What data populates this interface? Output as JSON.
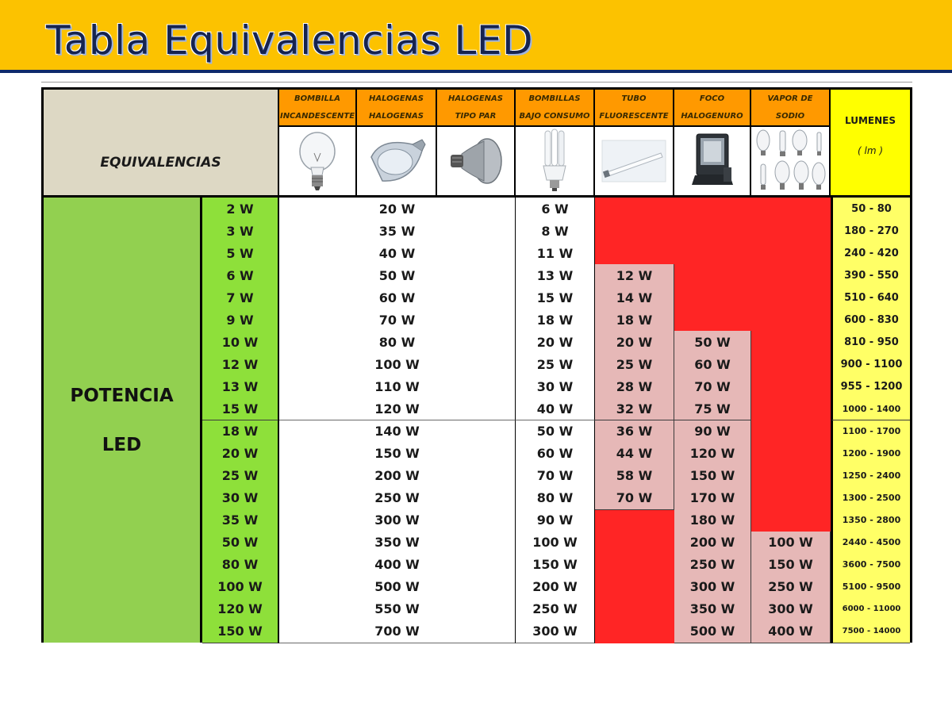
{
  "header": {
    "title": "Tabla Equivalencias LED"
  },
  "table": {
    "corner_label": "EQUIVALENCIAS",
    "row_group_label": [
      "POTENCIA",
      "LED"
    ],
    "columns": [
      {
        "key": "incandescente",
        "label": [
          "BOMBILLA",
          "INCANDESCENTE"
        ],
        "icon": "incandescent-bulb-icon"
      },
      {
        "key": "halogenas",
        "label": [
          "HALOGENAS",
          "HALOGENAS"
        ],
        "icon": "halogen-reflector-icon"
      },
      {
        "key": "par",
        "label": [
          "HALOGENAS",
          "TIPO PAR"
        ],
        "icon": "par-lamp-icon"
      },
      {
        "key": "bajo_consumo",
        "label": [
          "BOMBILLAS",
          "BAJO CONSUMO"
        ],
        "icon": "cfl-bulb-icon"
      },
      {
        "key": "tubo",
        "label": [
          "TUBO",
          "FLUORESCENTE"
        ],
        "icon": "fluorescent-tube-icon"
      },
      {
        "key": "foco",
        "label": [
          "FOCO",
          "HALOGENURO"
        ],
        "icon": "floodlight-icon"
      },
      {
        "key": "vapor",
        "label": [
          "VAPOR DE",
          "SODIO"
        ],
        "icon": "sodium-vapor-lamps-icon"
      }
    ],
    "lumens_header": {
      "label": "LUMENES",
      "unit": "( lm )"
    },
    "rows": [
      {
        "led": "2 W",
        "halogen": "20 W",
        "bajo": "6 W",
        "tubo": null,
        "foco": null,
        "vapor": null,
        "lumens": "50 - 80"
      },
      {
        "led": "3 W",
        "halogen": "35 W",
        "bajo": "8 W",
        "tubo": null,
        "foco": null,
        "vapor": null,
        "lumens": "180 - 270"
      },
      {
        "led": "5 W",
        "halogen": "40 W",
        "bajo": "11 W",
        "tubo": null,
        "foco": null,
        "vapor": null,
        "lumens": "240 - 420"
      },
      {
        "led": "6 W",
        "halogen": "50 W",
        "bajo": "13 W",
        "tubo": "12 W",
        "foco": null,
        "vapor": null,
        "lumens": "390 - 550"
      },
      {
        "led": "7 W",
        "halogen": "60 W",
        "bajo": "15 W",
        "tubo": "14 W",
        "foco": null,
        "vapor": null,
        "lumens": "510 - 640"
      },
      {
        "led": "9 W",
        "halogen": "70 W",
        "bajo": "18 W",
        "tubo": "18 W",
        "foco": null,
        "vapor": null,
        "lumens": "600 - 830"
      },
      {
        "led": "10 W",
        "halogen": "80 W",
        "bajo": "20 W",
        "tubo": "20 W",
        "foco": "50 W",
        "vapor": null,
        "lumens": "810 - 950"
      },
      {
        "led": "12 W",
        "halogen": "100 W",
        "bajo": "25 W",
        "tubo": "25 W",
        "foco": "60 W",
        "vapor": null,
        "lumens": "900 - 1100"
      },
      {
        "led": "13 W",
        "halogen": "110 W",
        "bajo": "30 W",
        "tubo": "28 W",
        "foco": "70 W",
        "vapor": null,
        "lumens": "955 - 1200"
      },
      {
        "led": "15 W",
        "halogen": "120 W",
        "bajo": "40 W",
        "tubo": "32 W",
        "foco": "75 W",
        "vapor": null,
        "lumens": "1000 - 1400"
      },
      {
        "led": "18 W",
        "halogen": "140 W",
        "bajo": "50 W",
        "tubo": "36 W",
        "foco": "90 W",
        "vapor": null,
        "lumens": "1100 - 1700"
      },
      {
        "led": "20 W",
        "halogen": "150 W",
        "bajo": "60 W",
        "tubo": "44 W",
        "foco": "120 W",
        "vapor": null,
        "lumens": "1200 - 1900"
      },
      {
        "led": "25 W",
        "halogen": "200 W",
        "bajo": "70 W",
        "tubo": "58 W",
        "foco": "150 W",
        "vapor": null,
        "lumens": "1250 - 2400"
      },
      {
        "led": "30 W",
        "halogen": "250 W",
        "bajo": "80 W",
        "tubo": "70 W",
        "foco": "170 W",
        "vapor": null,
        "lumens": "1300 - 2500"
      },
      {
        "led": "35 W",
        "halogen": "300 W",
        "bajo": "90 W",
        "tubo": null,
        "foco": "180 W",
        "vapor": null,
        "lumens": "1350 - 2800"
      },
      {
        "led": "50 W",
        "halogen": "350 W",
        "bajo": "100 W",
        "tubo": null,
        "foco": "200 W",
        "vapor": "100 W",
        "lumens": "2440 - 4500"
      },
      {
        "led": "80 W",
        "halogen": "400 W",
        "bajo": "150 W",
        "tubo": null,
        "foco": "250 W",
        "vapor": "150 W",
        "lumens": "3600 - 7500"
      },
      {
        "led": "100 W",
        "halogen": "500 W",
        "bajo": "200 W",
        "tubo": null,
        "foco": "300 W",
        "vapor": "250 W",
        "lumens": "5100 - 9500"
      },
      {
        "led": "120 W",
        "halogen": "550 W",
        "bajo": "250 W",
        "tubo": null,
        "foco": "350 W",
        "vapor": "300 W",
        "lumens": "6000 - 11000"
      },
      {
        "led": "150 W",
        "halogen": "700 W",
        "bajo": "300 W",
        "tubo": null,
        "foco": "500 W",
        "vapor": "400 W",
        "lumens": "7500 - 14000"
      }
    ]
  },
  "colors": {
    "title_bar": "#fcc200",
    "title_text": "#16234f",
    "title_rule": "#0e2a6b",
    "header_label": "#ff9900",
    "corner": "#ddd8c4",
    "potencia": "#92d050",
    "led_cell": "#8ee03a",
    "pink_cell": "#e6b8b7",
    "not_applicable": "#ff2525",
    "lumens": "#ffff66",
    "lumens_header": "#ffff00"
  }
}
